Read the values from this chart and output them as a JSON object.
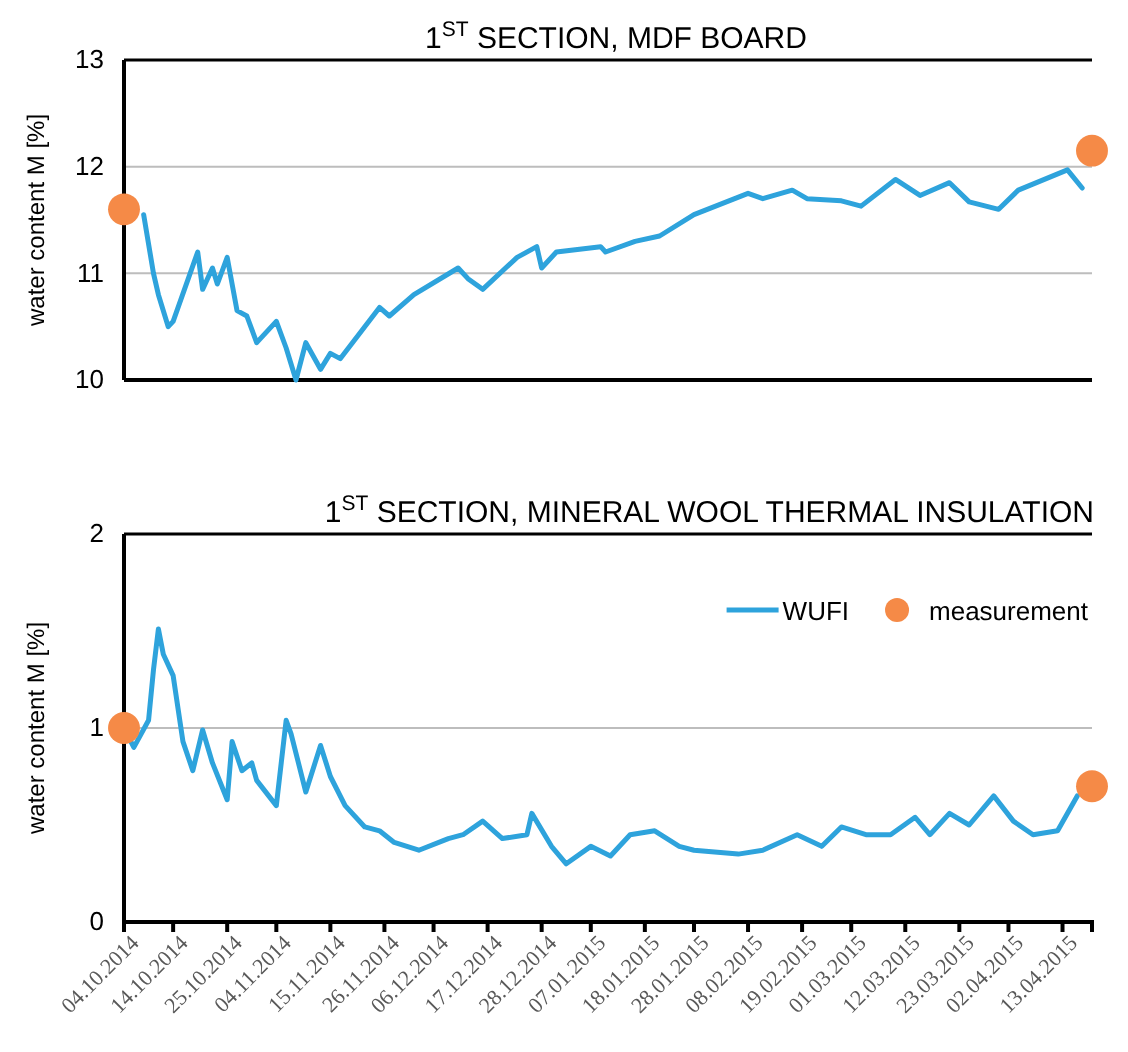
{
  "chart_data": [
    {
      "type": "line",
      "title": "1$^{ST}$ SECTION, MDF BOARD",
      "ylabel": "water content M [%]",
      "xlim": [
        "2014-10-04",
        "2015-04-19"
      ],
      "ylim": [
        10,
        13
      ],
      "yticks": [
        10,
        11,
        12,
        13
      ],
      "grid": "y",
      "tick_labels": "y",
      "series": [
        {
          "type": "line",
          "color": "#2ea3dc",
          "x": [
            "2014-10-08",
            "2014-10-10",
            "2014-10-11",
            "2014-10-13",
            "2014-10-14",
            "2014-10-19",
            "2014-10-20",
            "2014-10-22",
            "2014-10-23",
            "2014-10-25",
            "2014-10-27",
            "2014-10-29",
            "2014-10-31",
            "2014-11-04",
            "2014-11-06",
            "2014-11-08",
            "2014-11-10",
            "2014-11-13",
            "2014-11-15",
            "2014-11-17",
            "2014-11-25",
            "2014-11-27",
            "2014-12-02",
            "2014-12-11",
            "2014-12-13",
            "2014-12-16",
            "2014-12-23",
            "2014-12-27",
            "2014-12-28",
            "2014-12-31",
            "2015-01-09",
            "2015-01-10",
            "2015-01-16",
            "2015-01-21",
            "2015-01-28",
            "2015-02-08",
            "2015-02-11",
            "2015-02-17",
            "2015-02-20",
            "2015-02-27",
            "2015-03-03",
            "2015-03-10",
            "2015-03-15",
            "2015-03-21",
            "2015-03-25",
            "2015-03-31",
            "2015-04-04",
            "2015-04-14",
            "2015-04-17"
          ],
          "values": [
            11.55,
            11.0,
            10.8,
            10.5,
            10.55,
            11.2,
            10.85,
            11.05,
            10.9,
            11.15,
            10.65,
            10.6,
            10.35,
            10.55,
            10.3,
            10.0,
            10.35,
            10.1,
            10.25,
            10.2,
            10.68,
            10.6,
            10.8,
            11.05,
            10.95,
            10.85,
            11.15,
            11.25,
            11.05,
            11.2,
            11.25,
            11.2,
            11.3,
            11.35,
            11.55,
            11.75,
            11.7,
            11.78,
            11.7,
            11.68,
            11.63,
            11.88,
            11.73,
            11.85,
            11.67,
            11.6,
            11.78,
            11.97,
            11.8
          ]
        },
        {
          "type": "scatter",
          "color": "#f58a47",
          "marker": "circle",
          "x": [
            "2014-10-04",
            "2015-04-19"
          ],
          "values": [
            11.6,
            12.15
          ]
        }
      ]
    },
    {
      "type": "line",
      "title": "1$^{ST}$ SECTION, MINERAL WOOL THERMAL INSULATION",
      "ylabel": "water content M [%]",
      "xlim": [
        "2014-10-04",
        "2015-04-19"
      ],
      "ylim": [
        0,
        2
      ],
      "yticks": [
        0,
        1,
        2
      ],
      "grid": "y",
      "legend": "top right",
      "xticks": [
        {
          "value": "2014-10-04",
          "label": "04.10.2014"
        },
        {
          "value": "2014-10-14",
          "label": "14.10.2014"
        },
        {
          "value": "2014-10-25",
          "label": "25.10.2014"
        },
        {
          "value": "2014-11-04",
          "label": "04.11.2014"
        },
        {
          "value": "2014-11-15",
          "label": "15.11.2014"
        },
        {
          "value": "2014-11-26",
          "label": "26.11.2014"
        },
        {
          "value": "2014-12-06",
          "label": "06.12.2014"
        },
        {
          "value": "2014-12-17",
          "label": "17.12.2014"
        },
        {
          "value": "2014-12-28",
          "label": "28.12.2014"
        },
        {
          "value": "2015-01-07",
          "label": "07.01.2015"
        },
        {
          "value": "2015-01-18",
          "label": "18.01.2015"
        },
        {
          "value": "2015-01-28",
          "label": "28.01.2015"
        },
        {
          "value": "2015-02-08",
          "label": "08.02.2015"
        },
        {
          "value": "2015-02-19",
          "label": "19.02.2015"
        },
        {
          "value": "2015-03-01",
          "label": "01.03.2015"
        },
        {
          "value": "2015-03-12",
          "label": "12.03.2015"
        },
        {
          "value": "2015-03-23",
          "label": "23.03.2015"
        },
        {
          "value": "2015-04-02",
          "label": "02.04.2015"
        },
        {
          "value": "2015-04-13",
          "label": "13.04.2015"
        }
      ],
      "series": [
        {
          "type": "line",
          "name": "WUFI",
          "color": "#2ea3dc",
          "x": [
            "2014-10-04",
            "2014-10-06",
            "2014-10-09",
            "2014-10-10",
            "2014-10-11",
            "2014-10-12",
            "2014-10-14",
            "2014-10-16",
            "2014-10-18",
            "2014-10-20",
            "2014-10-22",
            "2014-10-25",
            "2014-10-26",
            "2014-10-28",
            "2014-10-30",
            "2014-10-31",
            "2014-11-04",
            "2014-11-06",
            "2014-11-07",
            "2014-11-10",
            "2014-11-13",
            "2014-11-15",
            "2014-11-18",
            "2014-11-22",
            "2014-11-25",
            "2014-11-28",
            "2014-12-03",
            "2014-12-09",
            "2014-12-12",
            "2014-12-16",
            "2014-12-20",
            "2014-12-25",
            "2014-12-26",
            "2014-12-30",
            "2015-01-02",
            "2015-01-07",
            "2015-01-11",
            "2015-01-15",
            "2015-01-20",
            "2015-01-25",
            "2015-01-28",
            "2015-02-06",
            "2015-02-11",
            "2015-02-18",
            "2015-02-23",
            "2015-02-27",
            "2015-03-04",
            "2015-03-09",
            "2015-03-14",
            "2015-03-17",
            "2015-03-21",
            "2015-03-25",
            "2015-03-30",
            "2015-04-03",
            "2015-04-07",
            "2015-04-12",
            "2015-04-16"
          ],
          "values": [
            1.0,
            0.9,
            1.04,
            1.3,
            1.51,
            1.38,
            1.27,
            0.93,
            0.78,
            0.99,
            0.82,
            0.63,
            0.93,
            0.78,
            0.82,
            0.73,
            0.6,
            1.04,
            0.97,
            0.67,
            0.91,
            0.75,
            0.6,
            0.49,
            0.47,
            0.41,
            0.37,
            0.43,
            0.45,
            0.52,
            0.43,
            0.45,
            0.56,
            0.39,
            0.3,
            0.39,
            0.34,
            0.45,
            0.47,
            0.39,
            0.37,
            0.35,
            0.37,
            0.45,
            0.39,
            0.49,
            0.45,
            0.45,
            0.54,
            0.45,
            0.56,
            0.5,
            0.65,
            0.52,
            0.45,
            0.47,
            0.65
          ]
        },
        {
          "type": "scatter",
          "name": "measurement",
          "color": "#f58a47",
          "marker": "circle",
          "x": [
            "2014-10-04",
            "2015-04-19"
          ],
          "values": [
            1.0,
            0.7
          ]
        }
      ]
    }
  ]
}
